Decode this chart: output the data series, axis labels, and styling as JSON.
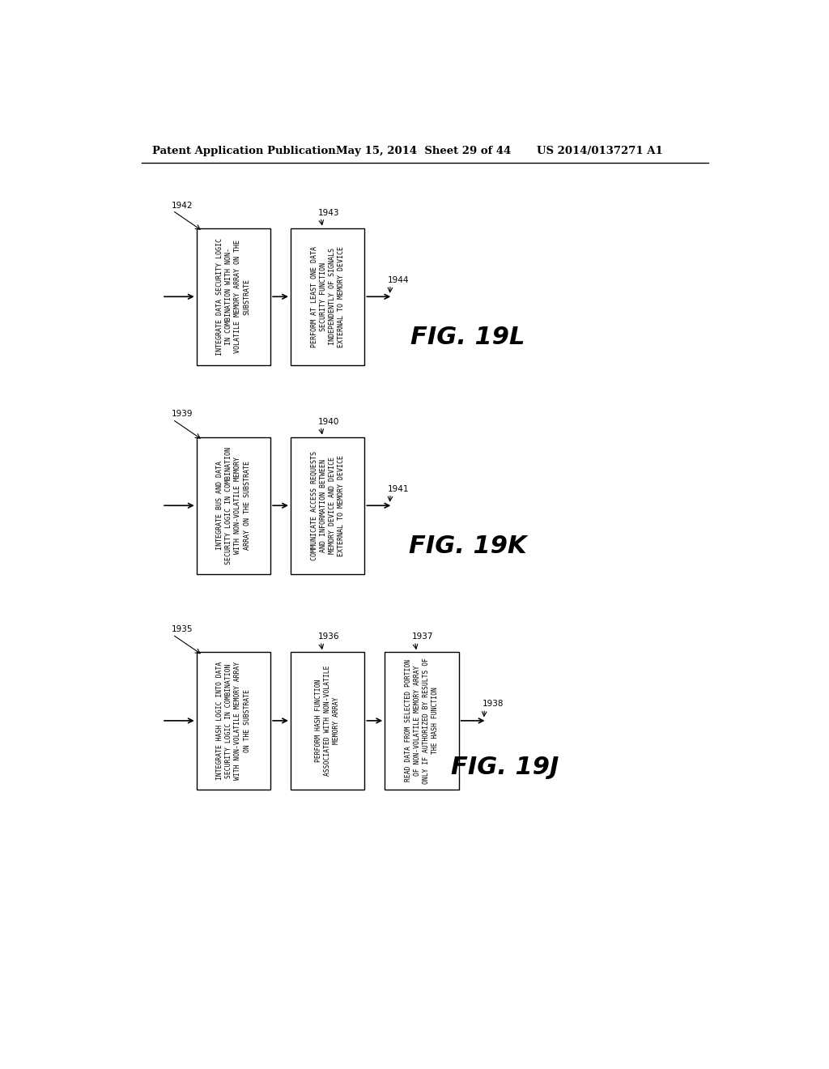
{
  "bg_color": "#ffffff",
  "header_left": "Patent Application Publication",
  "header_mid": "May 15, 2014  Sheet 29 of 44",
  "header_right": "US 2014/0137271 A1",
  "fig19L": {
    "label": "FIG. 19L",
    "refs": [
      "1942",
      "1943",
      "1944"
    ],
    "boxes": [
      "INTEGRATE DATA SECURITY LOGIC\nIN COMBINATION WITH NON-\nVOLATILE MEMORY ARRAY ON THE\nSUBSTRATE",
      "PERFORM AT LEAST ONE DATA\nSECURITY FUNCTION\nINDEPENDENTLY OF SIGNALS\nEXTERNAL TO MEMORY DEVICE"
    ]
  },
  "fig19K": {
    "label": "FIG. 19K",
    "refs": [
      "1939",
      "1940",
      "1941"
    ],
    "boxes": [
      "INTEGRATE BUS AND DATA\nSECURITY LOGIC IN COMBINATION\nWITH NON-VOLATILE MEMORY\nARRAY ON THE SUBSTRATE",
      "COMMUNICATE ACCESS REQUESTS\nAND INFORMATION BETWEEN\nMEMORY DEVICE AND DEVICE\nEXTERNAL TO MEMORY DEVICE"
    ]
  },
  "fig19J": {
    "label": "FIG. 19J",
    "refs": [
      "1935",
      "1936",
      "1937",
      "1938"
    ],
    "boxes": [
      "INTEGRATE HASH LOGIC INTO DATA\nSECURITY LOGIC IN COMBINATION\nWITH NON-VOLATILE MEMORY ARRAY\nON THE SUBSTRATE",
      "PERFORM HASH FUNCTION\nASSOCIATED WITH NON-VOLATILE\nMEMORY ARRAY",
      "READ DATA FROM SELECTED PORTION\nOF NON-VOLATILE MEMORY ARRAY\nONLY IF AUTHORIZED BY RESULTS OF\nTHE HASH FUNCTION"
    ]
  }
}
